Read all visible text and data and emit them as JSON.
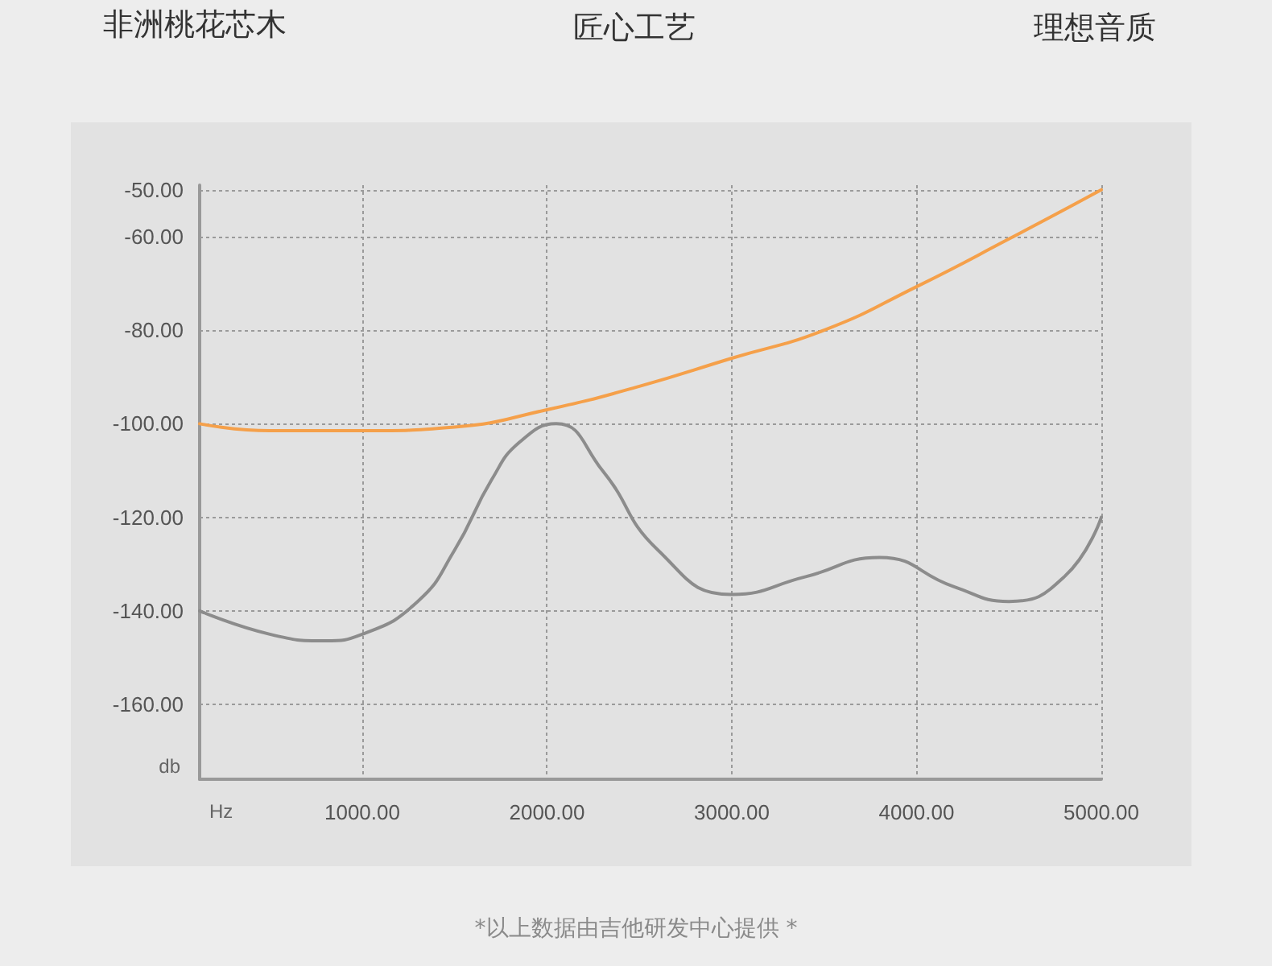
{
  "chart_data": {
    "type": "line",
    "xlabel": "Hz",
    "ylabel": "db",
    "annotations": [
      "非洲桃花芯木",
      "匠心工艺",
      "理想音质",
      "*以上数据由吉他研发中心提供 *"
    ],
    "xlim": [
      120,
      5000
    ],
    "ylim": [
      -176,
      -49
    ],
    "xticks": [
      {
        "value": 1000,
        "label": "1000.00"
      },
      {
        "value": 2000,
        "label": "2000.00"
      },
      {
        "value": 3000,
        "label": "3000.00"
      },
      {
        "value": 4000,
        "label": "4000.00"
      },
      {
        "value": 5000,
        "label": "5000.00"
      }
    ],
    "yticks": [
      {
        "value": -50,
        "label": "-50.00"
      },
      {
        "value": -60,
        "label": "-60.00"
      },
      {
        "value": -80,
        "label": "-80.00"
      },
      {
        "value": -100,
        "label": "-100.00"
      },
      {
        "value": -120,
        "label": "-120.00"
      },
      {
        "value": -140,
        "label": "-140.00"
      },
      {
        "value": -160,
        "label": "-160.00"
      }
    ],
    "grid": true,
    "marker": "none",
    "line_style": "solid",
    "series": [
      {
        "color": "#f5a04a",
        "x": [
          120,
          500,
          1000,
          1500,
          2000,
          2500,
          3000,
          3500,
          4000,
          4500,
          5000
        ],
        "values": [
          -100,
          -101.5,
          -101.5,
          -100.7,
          -97,
          -92,
          -86,
          -80,
          -70.7,
          -60.5,
          -50
        ]
      },
      {
        "color": "#8c8c8c",
        "x": [
          120,
          500,
          800,
          1000,
          1300,
          1500,
          1700,
          1850,
          2050,
          2300,
          2600,
          3000,
          3400,
          3800,
          4200,
          4500,
          4800,
          5000
        ],
        "values": [
          -140,
          -145,
          -146.4,
          -145,
          -138,
          -127,
          -112,
          -104,
          -100,
          -110,
          -127,
          -136.5,
          -132.7,
          -128.6,
          -134.8,
          -138,
          -132.7,
          -120
        ]
      }
    ]
  }
}
